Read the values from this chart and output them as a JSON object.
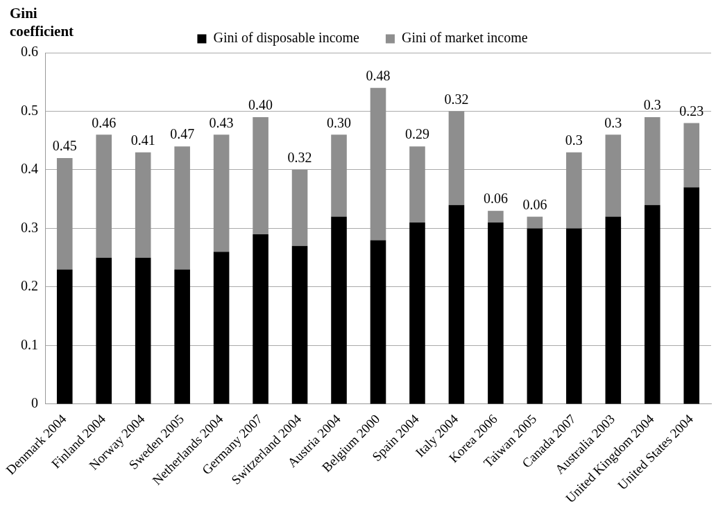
{
  "chart_data": {
    "type": "bar",
    "stacked": true,
    "ylabel": "Gini coefficient",
    "categories": [
      "Denmark 2004",
      "Finland 2004",
      "Norway 2004",
      "Sweden 2005",
      "Netherlands 2004",
      "Germany 2007",
      "Switzerland 2004",
      "Austria 2004",
      "Belgium 2000",
      "Spain 2004",
      "Italy 2004",
      "Korea 2006",
      "Taiwan 2005",
      "Canada 2007",
      "Australia 2003",
      "United Kingdom 2004",
      "United States 2004"
    ],
    "series": [
      {
        "name": "Gini of disposable income",
        "color": "#000000",
        "values": [
          0.23,
          0.25,
          0.25,
          0.23,
          0.26,
          0.29,
          0.27,
          0.32,
          0.28,
          0.31,
          0.34,
          0.31,
          0.3,
          0.3,
          0.32,
          0.34,
          0.37
        ]
      },
      {
        "name": "Gini of market income",
        "color": "#8e8e8e",
        "values": [
          0.19,
          0.21,
          0.18,
          0.21,
          0.2,
          0.2,
          0.13,
          0.14,
          0.26,
          0.13,
          0.16,
          0.02,
          0.02,
          0.13,
          0.14,
          0.15,
          0.11
        ]
      }
    ],
    "annotations": [
      {
        "text": "0.45",
        "x": "Denmark 2004",
        "y": 0.42
      },
      {
        "text": "0.46",
        "x": "Finland 2004",
        "y": 0.46
      },
      {
        "text": "0.41",
        "x": "Norway 2004",
        "y": 0.43
      },
      {
        "text": "0.47",
        "x": "Sweden 2005",
        "y": 0.44
      },
      {
        "text": "0.43",
        "x": "Netherlands 2004",
        "y": 0.46
      },
      {
        "text": "0.40",
        "x": "Germany 2007",
        "y": 0.49
      },
      {
        "text": "0.32",
        "x": "Switzerland 2004",
        "y": 0.4
      },
      {
        "text": "0.30",
        "x": "Austria 2004",
        "y": 0.46
      },
      {
        "text": "0.48",
        "x": "Belgium 2000",
        "y": 0.54
      },
      {
        "text": "0.29",
        "x": "Spain 2004",
        "y": 0.44
      },
      {
        "text": "0.32",
        "x": "Italy 2004",
        "y": 0.5
      },
      {
        "text": "0.06",
        "x": "Korea 2006",
        "y": 0.33
      },
      {
        "text": "0.06",
        "x": "Taiwan 2005",
        "y": 0.32
      },
      {
        "text": "0.3",
        "x": "Canada 2007",
        "y": 0.43
      },
      {
        "text": "0.3",
        "x": "Australia 2003",
        "y": 0.46
      },
      {
        "text": "0.3",
        "x": "United Kingdom 2004",
        "y": 0.49
      },
      {
        "text": "0.23",
        "x": "United States 2004",
        "y": 0.48
      }
    ],
    "ylim": [
      0,
      0.6
    ],
    "yticks": [
      0,
      0.1,
      0.2,
      0.3,
      0.4,
      0.5,
      0.6
    ],
    "grid": "y",
    "legend": "top"
  }
}
